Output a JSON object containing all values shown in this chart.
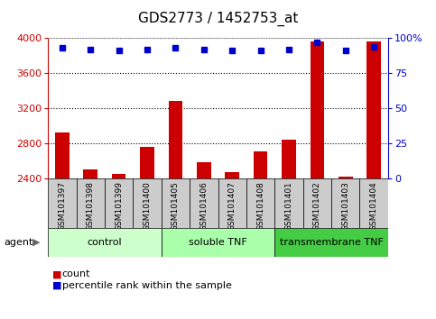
{
  "title": "GDS2773 / 1452753_at",
  "samples": [
    "GSM101397",
    "GSM101398",
    "GSM101399",
    "GSM101400",
    "GSM101405",
    "GSM101406",
    "GSM101407",
    "GSM101408",
    "GSM101401",
    "GSM101402",
    "GSM101403",
    "GSM101404"
  ],
  "counts": [
    2930,
    2510,
    2450,
    2760,
    3290,
    2590,
    2470,
    2710,
    2840,
    3960,
    2420,
    3960
  ],
  "percentile_ranks": [
    93,
    92,
    91,
    92,
    93,
    92,
    91,
    91,
    92,
    97,
    91,
    94
  ],
  "bar_color": "#cc0000",
  "dot_color": "#0000cc",
  "ylim_left": [
    2400,
    4000
  ],
  "ylim_right": [
    0,
    100
  ],
  "yticks_left": [
    2400,
    2800,
    3200,
    3600,
    4000
  ],
  "yticks_right": [
    0,
    25,
    50,
    75,
    100
  ],
  "groups": [
    {
      "label": "control",
      "start": 0,
      "end": 4,
      "color": "#ccffcc"
    },
    {
      "label": "soluble TNF",
      "start": 4,
      "end": 8,
      "color": "#aaffaa"
    },
    {
      "label": "transmembrane TNF",
      "start": 8,
      "end": 12,
      "color": "#44cc44"
    }
  ],
  "agent_label": "agent",
  "legend_count_label": "count",
  "legend_pct_label": "percentile rank within the sample",
  "background_color": "#ffffff",
  "plot_bg_color": "#ffffff",
  "sample_bg_color": "#cccccc",
  "grid_color": "#000000",
  "title_fontsize": 11,
  "tick_fontsize": 8,
  "sample_fontsize": 6.5,
  "group_fontsize": 8,
  "legend_fontsize": 8,
  "axis_color_left": "#cc0000",
  "axis_color_right": "#0000cc",
  "bar_width": 0.5
}
